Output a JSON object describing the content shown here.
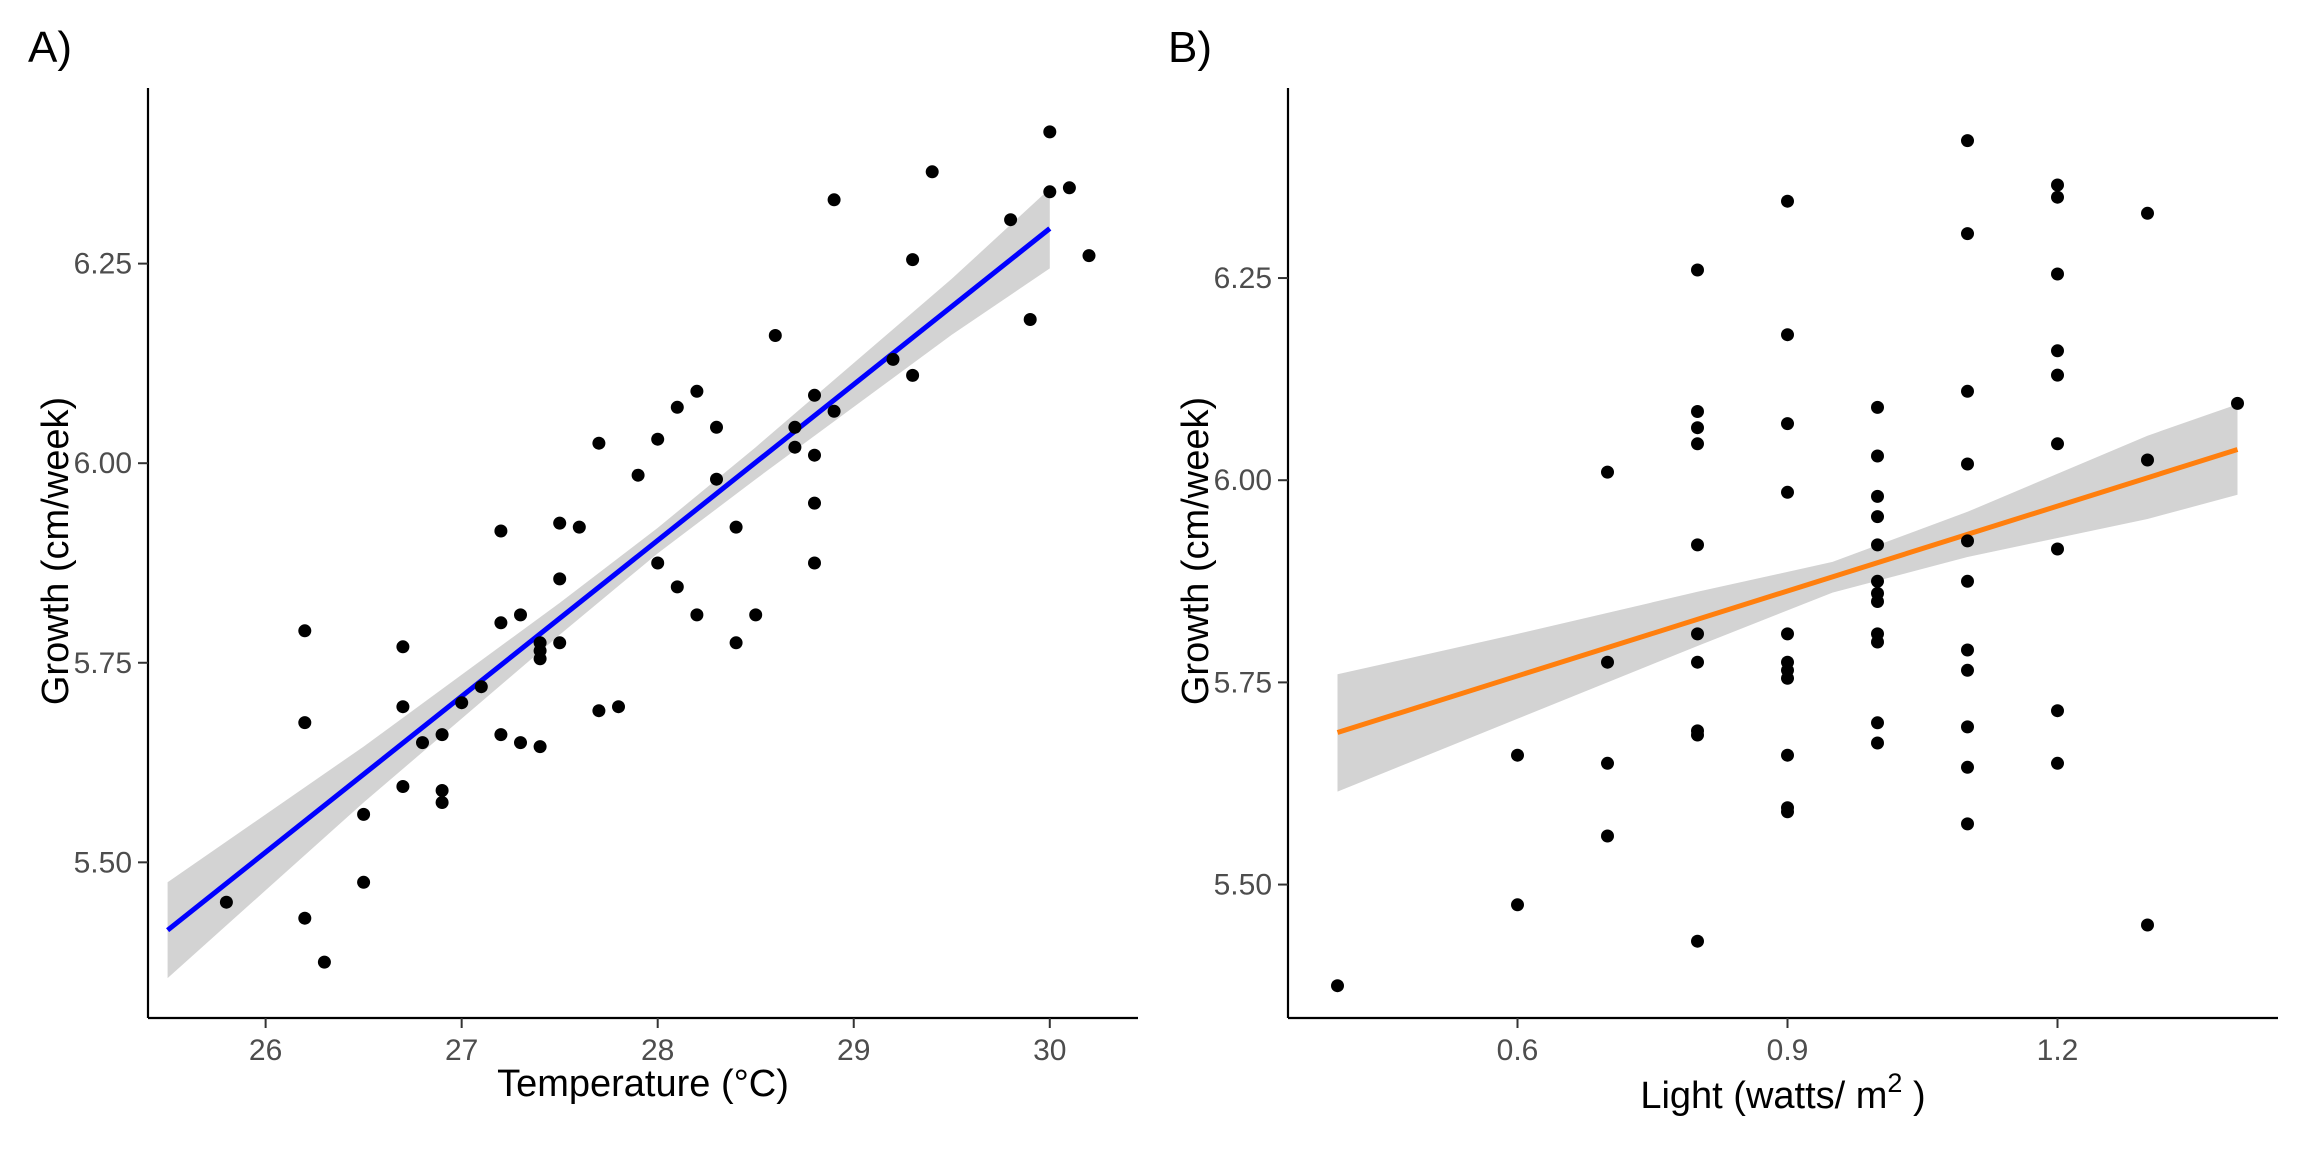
{
  "figure": {
    "panels": [
      "A)",
      "B)"
    ]
  },
  "chart_data": [
    {
      "type": "scatter",
      "panel_label": "A)",
      "xlabel": "Temperature (°C)",
      "ylabel": "Growth (cm/week)",
      "xlim": [
        25.4,
        30.45
      ],
      "ylim": [
        5.305,
        6.47
      ],
      "x_ticks": [
        26,
        27,
        28,
        29,
        30
      ],
      "y_ticks": [
        5.5,
        5.75,
        6.0,
        6.25
      ],
      "x_tick_labels": [
        "26",
        "27",
        "28",
        "29",
        "30"
      ],
      "y_tick_labels": [
        "5.50",
        "5.75",
        "6.00",
        "6.25"
      ],
      "grid": false,
      "fit": {
        "line_color": "#0000ff",
        "ribbon_color": "#d3d3d3",
        "points": [
          {
            "x": 25.5,
            "y": 5.415,
            "lo": 5.355,
            "hi": 5.475
          },
          {
            "x": 26.5,
            "y": 5.61,
            "lo": 5.575,
            "hi": 5.645
          },
          {
            "x": 27.5,
            "y": 5.805,
            "lo": 5.785,
            "hi": 5.825
          },
          {
            "x": 28.0,
            "y": 5.903,
            "lo": 5.887,
            "hi": 5.919
          },
          {
            "x": 28.5,
            "y": 6.0,
            "lo": 5.98,
            "hi": 6.02
          },
          {
            "x": 29.5,
            "y": 6.196,
            "lo": 6.161,
            "hi": 6.231
          },
          {
            "x": 30.0,
            "y": 6.294,
            "lo": 6.244,
            "hi": 6.344
          }
        ]
      },
      "points": [
        [
          25.8,
          5.45
        ],
        [
          26.2,
          5.79
        ],
        [
          26.2,
          5.675
        ],
        [
          26.2,
          5.43
        ],
        [
          26.3,
          5.375
        ],
        [
          26.5,
          5.56
        ],
        [
          26.5,
          5.475
        ],
        [
          26.7,
          5.77
        ],
        [
          26.7,
          5.695
        ],
        [
          26.7,
          5.595
        ],
        [
          26.8,
          5.65
        ],
        [
          26.9,
          5.66
        ],
        [
          26.9,
          5.59
        ],
        [
          26.9,
          5.575
        ],
        [
          27.0,
          5.7
        ],
        [
          27.1,
          5.72
        ],
        [
          27.2,
          5.915
        ],
        [
          27.2,
          5.8
        ],
        [
          27.2,
          5.66
        ],
        [
          27.3,
          5.81
        ],
        [
          27.3,
          5.65
        ],
        [
          27.4,
          5.775
        ],
        [
          27.4,
          5.765
        ],
        [
          27.4,
          5.755
        ],
        [
          27.4,
          5.645
        ],
        [
          27.5,
          5.925
        ],
        [
          27.5,
          5.855
        ],
        [
          27.5,
          5.775
        ],
        [
          27.6,
          5.92
        ],
        [
          27.7,
          6.025
        ],
        [
          27.7,
          5.69
        ],
        [
          27.8,
          5.695
        ],
        [
          27.9,
          5.985
        ],
        [
          28.0,
          6.03
        ],
        [
          28.0,
          5.875
        ],
        [
          28.1,
          6.07
        ],
        [
          28.1,
          5.845
        ],
        [
          28.2,
          6.09
        ],
        [
          28.2,
          5.81
        ],
        [
          28.3,
          6.045
        ],
        [
          28.3,
          5.98
        ],
        [
          28.4,
          5.92
        ],
        [
          28.4,
          5.775
        ],
        [
          28.5,
          5.81
        ],
        [
          28.6,
          6.16
        ],
        [
          28.7,
          6.045
        ],
        [
          28.7,
          6.02
        ],
        [
          28.8,
          6.085
        ],
        [
          28.8,
          6.01
        ],
        [
          28.8,
          5.95
        ],
        [
          28.8,
          5.875
        ],
        [
          28.9,
          6.33
        ],
        [
          28.9,
          6.065
        ],
        [
          29.2,
          6.13
        ],
        [
          29.3,
          6.255
        ],
        [
          29.3,
          6.11
        ],
        [
          29.4,
          6.365
        ],
        [
          29.8,
          6.305
        ],
        [
          29.9,
          6.18
        ],
        [
          30.0,
          6.415
        ],
        [
          30.0,
          6.34
        ],
        [
          30.1,
          6.345
        ],
        [
          30.2,
          6.26
        ]
      ]
    },
    {
      "type": "scatter",
      "panel_label": "B)",
      "xlabel": "Light (watts/ m",
      "xlabel_superscript": "2",
      "xlabel_suffix": " )",
      "ylabel": "Growth (cm/week)",
      "xlim": [
        0.345,
        1.445
      ],
      "ylim": [
        5.335,
        6.485
      ],
      "x_ticks": [
        0.6,
        0.9,
        1.2
      ],
      "y_ticks": [
        5.5,
        5.75,
        6.0,
        6.25
      ],
      "x_tick_labels": [
        "0.6",
        "0.9",
        "1.2"
      ],
      "y_tick_labels": [
        "5.50",
        "5.75",
        "6.00",
        "6.25"
      ],
      "grid": false,
      "fit": {
        "line_color": "#ff7f0e",
        "ribbon_color": "#d3d3d3",
        "points": [
          {
            "x": 0.4,
            "y": 5.688,
            "lo": 5.615,
            "hi": 5.76
          },
          {
            "x": 0.6,
            "y": 5.758,
            "lo": 5.705,
            "hi": 5.81
          },
          {
            "x": 0.8,
            "y": 5.828,
            "lo": 5.795,
            "hi": 5.862
          },
          {
            "x": 0.95,
            "y": 5.88,
            "lo": 5.861,
            "hi": 5.899
          },
          {
            "x": 1.1,
            "y": 5.933,
            "lo": 5.905,
            "hi": 5.961
          },
          {
            "x": 1.3,
            "y": 6.003,
            "lo": 5.952,
            "hi": 6.055
          },
          {
            "x": 1.4,
            "y": 6.038,
            "lo": 5.982,
            "hi": 6.094
          }
        ]
      },
      "points": [
        [
          0.4,
          5.375
        ],
        [
          0.6,
          5.66
        ],
        [
          0.6,
          5.475
        ],
        [
          0.7,
          6.01
        ],
        [
          0.7,
          5.775
        ],
        [
          0.7,
          5.65
        ],
        [
          0.7,
          5.56
        ],
        [
          0.8,
          6.26
        ],
        [
          0.8,
          6.085
        ],
        [
          0.8,
          6.065
        ],
        [
          0.8,
          6.045
        ],
        [
          0.8,
          5.92
        ],
        [
          0.8,
          5.81
        ],
        [
          0.8,
          5.775
        ],
        [
          0.8,
          5.69
        ],
        [
          0.8,
          5.685
        ],
        [
          0.8,
          5.43
        ],
        [
          0.9,
          6.345
        ],
        [
          0.9,
          6.18
        ],
        [
          0.9,
          6.07
        ],
        [
          0.9,
          5.985
        ],
        [
          0.9,
          5.81
        ],
        [
          0.9,
          5.775
        ],
        [
          0.9,
          5.765
        ],
        [
          0.9,
          5.755
        ],
        [
          0.9,
          5.66
        ],
        [
          0.9,
          5.595
        ],
        [
          0.9,
          5.59
        ],
        [
          1.0,
          6.09
        ],
        [
          1.0,
          6.03
        ],
        [
          1.0,
          5.98
        ],
        [
          1.0,
          5.955
        ],
        [
          1.0,
          5.92
        ],
        [
          1.0,
          5.875
        ],
        [
          1.0,
          5.86
        ],
        [
          1.0,
          5.85
        ],
        [
          1.0,
          5.81
        ],
        [
          1.0,
          5.8
        ],
        [
          1.0,
          5.7
        ],
        [
          1.0,
          5.675
        ],
        [
          1.1,
          6.42
        ],
        [
          1.1,
          6.305
        ],
        [
          1.1,
          6.11
        ],
        [
          1.1,
          6.02
        ],
        [
          1.1,
          5.925
        ],
        [
          1.1,
          5.875
        ],
        [
          1.1,
          5.79
        ],
        [
          1.1,
          5.765
        ],
        [
          1.1,
          5.695
        ],
        [
          1.1,
          5.645
        ],
        [
          1.1,
          5.575
        ],
        [
          1.2,
          6.365
        ],
        [
          1.2,
          6.35
        ],
        [
          1.2,
          6.255
        ],
        [
          1.2,
          6.16
        ],
        [
          1.2,
          6.13
        ],
        [
          1.2,
          6.045
        ],
        [
          1.2,
          5.915
        ],
        [
          1.2,
          5.715
        ],
        [
          1.2,
          5.65
        ],
        [
          1.3,
          6.33
        ],
        [
          1.3,
          6.025
        ],
        [
          1.3,
          5.45
        ],
        [
          1.4,
          6.095
        ]
      ]
    }
  ]
}
